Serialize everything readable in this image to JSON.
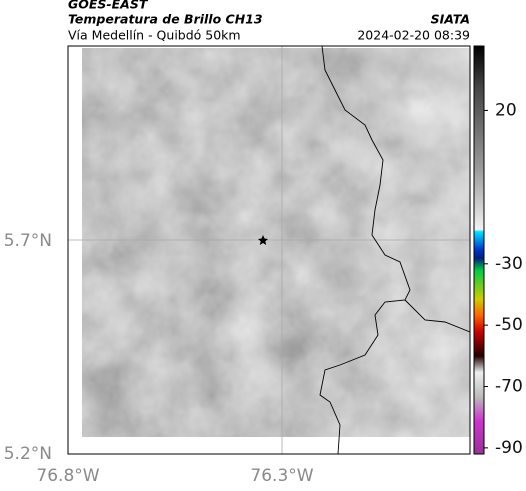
{
  "header": {
    "source": "GOES-EAST",
    "title": "Temperatura de Brillo CH13",
    "subtitle": "Vía Medellín - Quibdó 50km",
    "agency": "SIATA",
    "datetime": "2024-02-20 08:39"
  },
  "map": {
    "lat_labels": [
      "5.7°N",
      "5.2°N"
    ],
    "lon_labels": [
      "76.8°W",
      "76.3°W"
    ]
  },
  "colorbar": {
    "ylim": [
      -92,
      41
    ],
    "ticks": [
      20,
      -30,
      -50,
      -70,
      -90
    ]
  }
}
